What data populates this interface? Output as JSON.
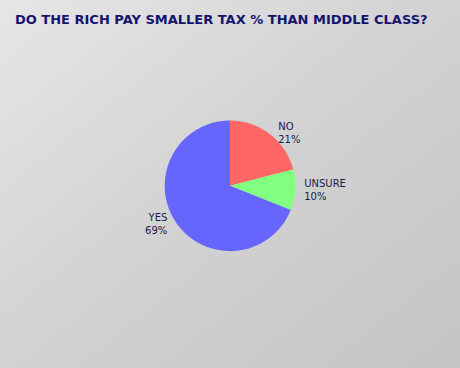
{
  "chart_data": {
    "type": "pie",
    "title": "DO THE RICH PAY SMALLER TAX % THAN MIDDLE CLASS?",
    "categories": [
      "NO",
      "UNSURE",
      "YES"
    ],
    "values": [
      21,
      10,
      69
    ],
    "value_labels": [
      "21%",
      "10%",
      "69%"
    ],
    "colors": [
      "#ff6666",
      "#80ff80",
      "#6666ff"
    ],
    "data_labels": true,
    "legend": false
  }
}
